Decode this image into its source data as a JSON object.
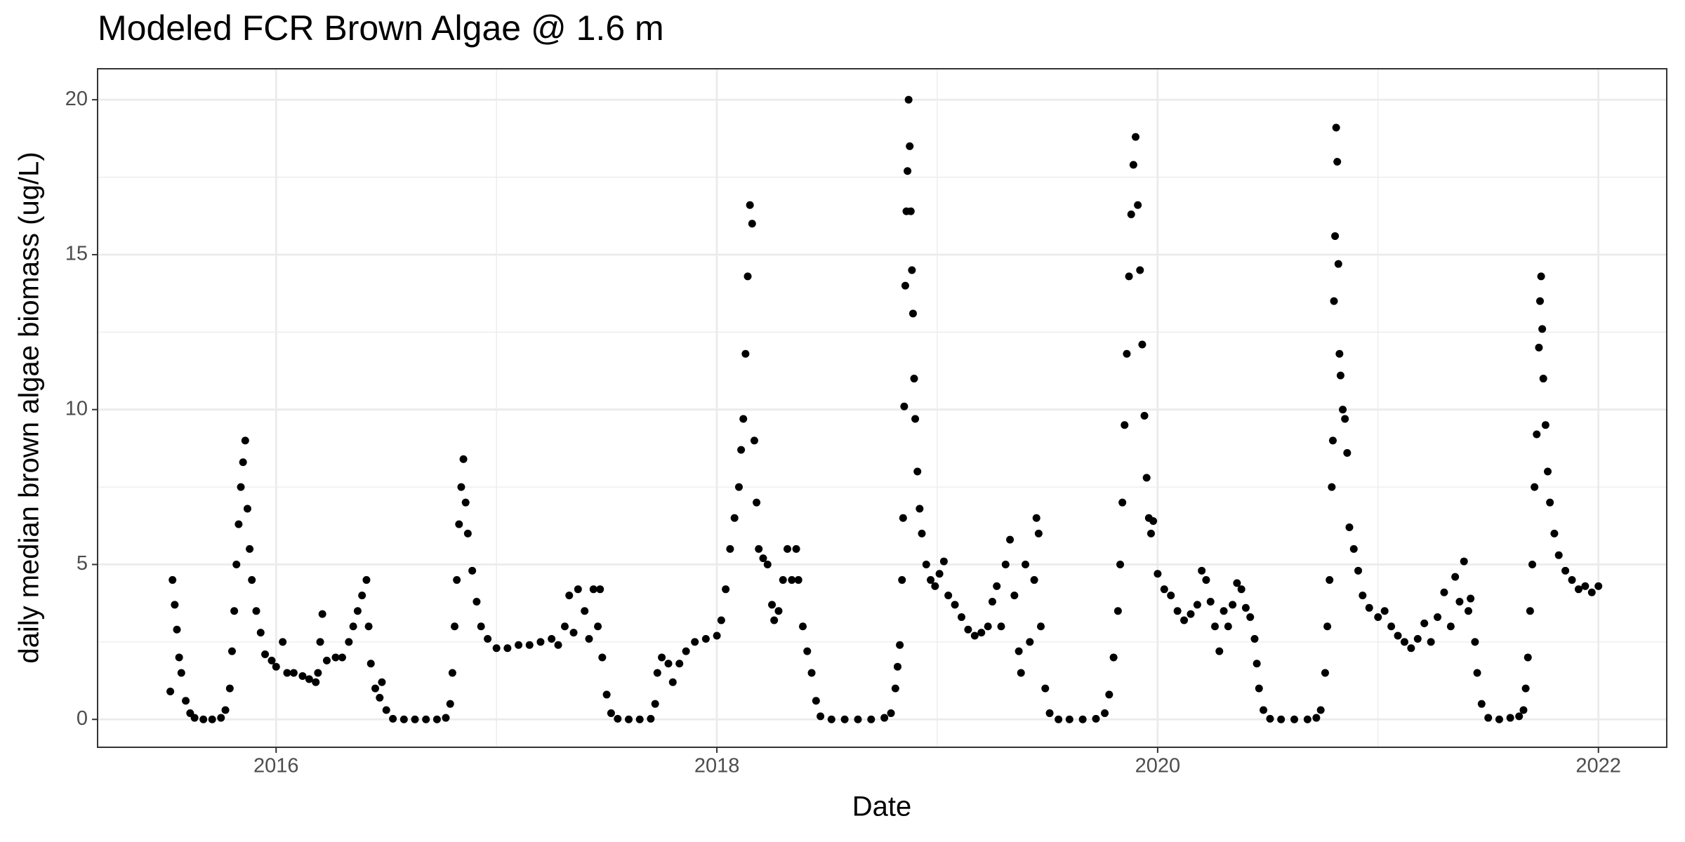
{
  "chart_data": {
    "type": "scatter",
    "title": "Modeled FCR Brown Algae @ 1.6 m",
    "x_label": "Date",
    "y_label": "daily median brown algae biomass (ug/L)",
    "color": "#000000",
    "grid": true,
    "xlim": [
      2015.19,
      2022.31
    ],
    "ylim": [
      -0.9,
      21.0
    ],
    "xticks": [
      2016,
      2018,
      2020,
      2022
    ],
    "yticks": [
      0,
      5,
      10,
      15,
      20
    ],
    "xminor": [
      2017,
      2019,
      2021
    ],
    "yminor": [
      2.5,
      7.5,
      12.5,
      17.5
    ],
    "x": [
      2015.52,
      2015.53,
      2015.54,
      2015.55,
      2015.56,
      2015.57,
      2015.59,
      2015.61,
      2015.63,
      2015.67,
      2015.71,
      2015.75,
      2015.77,
      2015.79,
      2015.8,
      2015.81,
      2015.82,
      2015.83,
      2015.84,
      2015.85,
      2015.86,
      2015.87,
      2015.88,
      2015.89,
      2015.91,
      2015.93,
      2015.95,
      2015.98,
      2016.0,
      2016.03,
      2016.05,
      2016.08,
      2016.12,
      2016.15,
      2016.18,
      2016.19,
      2016.2,
      2016.21,
      2016.23,
      2016.27,
      2016.3,
      2016.33,
      2016.35,
      2016.37,
      2016.39,
      2016.41,
      2016.42,
      2016.43,
      2016.45,
      2016.47,
      2016.48,
      2016.5,
      2016.53,
      2016.58,
      2016.63,
      2016.68,
      2016.73,
      2016.77,
      2016.79,
      2016.8,
      2016.81,
      2016.82,
      2016.83,
      2016.84,
      2016.85,
      2016.86,
      2016.87,
      2016.89,
      2016.91,
      2016.93,
      2016.96,
      2017.0,
      2017.05,
      2017.1,
      2017.15,
      2017.2,
      2017.25,
      2017.28,
      2017.31,
      2017.33,
      2017.35,
      2017.37,
      2017.4,
      2017.42,
      2017.44,
      2017.46,
      2017.47,
      2017.48,
      2017.5,
      2017.52,
      2017.55,
      2017.6,
      2017.65,
      2017.7,
      2017.72,
      2017.73,
      2017.75,
      2017.78,
      2017.8,
      2017.83,
      2017.86,
      2017.9,
      2017.95,
      2018.0,
      2018.02,
      2018.04,
      2018.06,
      2018.08,
      2018.1,
      2018.11,
      2018.12,
      2018.13,
      2018.14,
      2018.15,
      2018.16,
      2018.17,
      2018.18,
      2018.19,
      2018.21,
      2018.23,
      2018.25,
      2018.26,
      2018.28,
      2018.3,
      2018.32,
      2018.34,
      2018.36,
      2018.37,
      2018.39,
      2018.41,
      2018.43,
      2018.45,
      2018.47,
      2018.52,
      2018.58,
      2018.64,
      2018.7,
      2018.76,
      2018.79,
      2018.81,
      2018.82,
      2018.83,
      2018.84,
      2018.845,
      2018.85,
      2018.855,
      2018.86,
      2018.865,
      2018.87,
      2018.875,
      2018.88,
      2018.885,
      2018.89,
      2018.895,
      2018.9,
      2018.91,
      2018.92,
      2018.93,
      2018.95,
      2018.97,
      2018.99,
      2019.01,
      2019.03,
      2019.05,
      2019.08,
      2019.11,
      2019.14,
      2019.17,
      2019.2,
      2019.23,
      2019.25,
      2019.27,
      2019.29,
      2019.31,
      2019.33,
      2019.35,
      2019.37,
      2019.38,
      2019.4,
      2019.42,
      2019.44,
      2019.45,
      2019.46,
      2019.47,
      2019.49,
      2019.51,
      2019.55,
      2019.6,
      2019.66,
      2019.72,
      2019.76,
      2019.78,
      2019.8,
      2019.82,
      2019.83,
      2019.84,
      2019.85,
      2019.86,
      2019.87,
      2019.88,
      2019.89,
      2019.9,
      2019.91,
      2019.92,
      2019.93,
      2019.94,
      2019.95,
      2019.96,
      2019.97,
      2019.98,
      2020.0,
      2020.03,
      2020.06,
      2020.09,
      2020.12,
      2020.15,
      2020.18,
      2020.2,
      2020.22,
      2020.24,
      2020.26,
      2020.28,
      2020.3,
      2020.32,
      2020.34,
      2020.36,
      2020.38,
      2020.4,
      2020.42,
      2020.44,
      2020.45,
      2020.46,
      2020.48,
      2020.51,
      2020.56,
      2020.62,
      2020.68,
      2020.72,
      2020.74,
      2020.76,
      2020.77,
      2020.78,
      2020.79,
      2020.795,
      2020.8,
      2020.805,
      2020.81,
      2020.815,
      2020.82,
      2020.825,
      2020.83,
      2020.84,
      2020.85,
      2020.86,
      2020.87,
      2020.89,
      2020.91,
      2020.93,
      2020.96,
      2021.0,
      2021.03,
      2021.06,
      2021.09,
      2021.12,
      2021.15,
      2021.18,
      2021.21,
      2021.24,
      2021.27,
      2021.3,
      2021.33,
      2021.35,
      2021.37,
      2021.39,
      2021.41,
      2021.42,
      2021.44,
      2021.45,
      2021.47,
      2021.5,
      2021.55,
      2021.6,
      2021.64,
      2021.66,
      2021.67,
      2021.68,
      2021.69,
      2021.7,
      2021.71,
      2021.72,
      2021.73,
      2021.735,
      2021.74,
      2021.745,
      2021.75,
      2021.76,
      2021.77,
      2021.78,
      2021.8,
      2021.82,
      2021.85,
      2021.88,
      2021.91,
      2021.94,
      2021.97,
      2022.0
    ],
    "values": [
      0.9,
      4.5,
      3.7,
      2.9,
      2.0,
      1.5,
      0.6,
      0.2,
      0.05,
      0,
      0,
      0.05,
      0.3,
      1.0,
      2.2,
      3.5,
      5.0,
      6.3,
      7.5,
      8.3,
      9.0,
      6.8,
      5.5,
      4.5,
      3.5,
      2.8,
      2.1,
      1.9,
      1.7,
      2.5,
      1.5,
      1.5,
      1.4,
      1.3,
      1.2,
      1.5,
      2.5,
      3.4,
      1.9,
      2.0,
      2.0,
      2.5,
      3.0,
      3.5,
      4.0,
      4.5,
      3.0,
      1.8,
      1.0,
      0.7,
      1.2,
      0.3,
      0.02,
      0,
      0,
      0,
      0,
      0.05,
      0.5,
      1.5,
      3.0,
      4.5,
      6.3,
      7.5,
      8.4,
      7.0,
      6.0,
      4.8,
      3.8,
      3.0,
      2.6,
      2.3,
      2.3,
      2.4,
      2.4,
      2.5,
      2.6,
      2.4,
      3.0,
      4.0,
      2.8,
      4.2,
      3.5,
      2.6,
      4.2,
      3.0,
      4.2,
      2.0,
      0.8,
      0.2,
      0.02,
      0,
      0,
      0.02,
      0.5,
      1.5,
      2.0,
      1.8,
      1.2,
      1.8,
      2.2,
      2.5,
      2.6,
      2.7,
      3.2,
      4.2,
      5.5,
      6.5,
      7.5,
      8.7,
      9.7,
      11.8,
      14.3,
      16.6,
      16.0,
      9.0,
      7.0,
      5.5,
      5.2,
      5.0,
      3.7,
      3.2,
      3.5,
      4.5,
      5.5,
      4.5,
      5.5,
      4.5,
      3.0,
      2.2,
      1.5,
      0.6,
      0.1,
      0,
      0,
      0,
      0,
      0.05,
      0.2,
      1.0,
      1.7,
      2.4,
      4.5,
      6.5,
      10.1,
      14.0,
      16.4,
      17.7,
      20.0,
      18.5,
      16.4,
      14.5,
      13.1,
      11.0,
      9.7,
      8.0,
      6.8,
      6.0,
      5.0,
      4.5,
      4.3,
      4.7,
      5.1,
      4.0,
      3.7,
      3.3,
      2.9,
      2.7,
      2.8,
      3.0,
      3.8,
      4.3,
      3.0,
      5.0,
      5.8,
      4.0,
      2.2,
      1.5,
      5.0,
      2.5,
      4.5,
      6.5,
      6.0,
      3.0,
      1.0,
      0.2,
      0,
      0,
      0,
      0.02,
      0.2,
      0.8,
      2.0,
      3.5,
      5.0,
      7.0,
      9.5,
      11.8,
      14.3,
      16.3,
      17.9,
      18.8,
      16.6,
      14.5,
      12.1,
      9.8,
      7.8,
      6.5,
      6.0,
      6.4,
      4.7,
      4.2,
      4.0,
      3.5,
      3.2,
      3.4,
      3.7,
      4.8,
      4.5,
      3.8,
      3.0,
      2.2,
      3.5,
      3.0,
      3.7,
      4.4,
      4.2,
      3.6,
      3.3,
      2.6,
      1.8,
      1.0,
      0.3,
      0.02,
      0,
      0,
      0,
      0.05,
      0.3,
      1.5,
      3.0,
      4.5,
      7.5,
      9.0,
      13.5,
      15.6,
      19.1,
      18.0,
      14.7,
      11.8,
      11.1,
      10.0,
      9.7,
      8.6,
      6.2,
      5.5,
      4.8,
      4.0,
      3.6,
      3.3,
      3.5,
      3.0,
      2.7,
      2.5,
      2.3,
      2.6,
      3.1,
      2.5,
      3.3,
      4.1,
      3.0,
      4.6,
      3.8,
      5.1,
      3.5,
      3.9,
      2.5,
      1.5,
      0.5,
      0.05,
      0,
      0.05,
      0.1,
      0.3,
      1.0,
      2.0,
      3.5,
      5.0,
      7.5,
      9.2,
      12.0,
      13.5,
      14.3,
      12.6,
      11.0,
      9.5,
      8.0,
      7.0,
      6.0,
      5.3,
      4.8,
      4.5,
      4.2,
      4.3,
      4.1,
      4.3
    ]
  }
}
